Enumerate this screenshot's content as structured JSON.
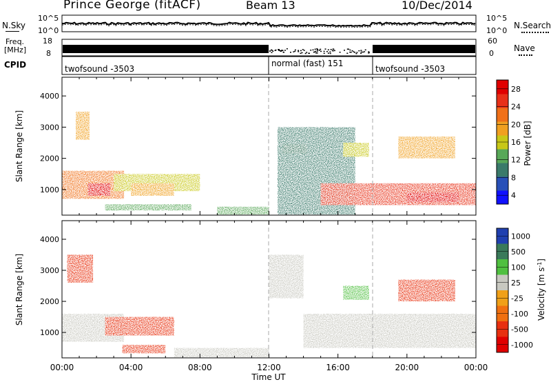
{
  "header": {
    "station": "Prince George (fitACF)",
    "beam": "Beam 13",
    "date": "10/Dec/2014"
  },
  "left_labels": {
    "nsky": "N.Sky",
    "freq_line1": "Freq.",
    "freq_line2": "[MHz]",
    "cpid": "CPID"
  },
  "right_labels": {
    "nsearch": "N.Search",
    "nave": "Nave"
  },
  "noise_axis": {
    "top": "10^5",
    "bottom": "10^0"
  },
  "freq_axis": {
    "top": "18",
    "bottom": "8"
  },
  "nave_axis": {
    "top": "60",
    "bottom": "0"
  },
  "cpid_segments": [
    {
      "label": "twofsound -3503",
      "start_hour": 0
    },
    {
      "label": "normal (fast) 151",
      "start_hour": 12
    },
    {
      "label": "twofsound -3503",
      "start_hour": 18
    }
  ],
  "time_axis": {
    "label": "Time UT",
    "ticks": [
      "00:00",
      "04:00",
      "08:00",
      "12:00",
      "16:00",
      "20:00",
      "00:00"
    ]
  },
  "range_axis": {
    "label": "Slant Range [km]",
    "ticks": [
      "1000",
      "2000",
      "3000",
      "4000"
    ]
  },
  "power_scale": {
    "label": "Power [dB]",
    "ticks": [
      "4",
      "8",
      "12",
      "16",
      "20",
      "24",
      "28"
    ],
    "colors": [
      "#1010ff",
      "#2850b8",
      "#3a7a6a",
      "#58a858",
      "#c8c818",
      "#f0a020",
      "#f07018",
      "#e83018",
      "#e00000"
    ]
  },
  "velocity_scale": {
    "label": "Velocity [m s",
    "label_sup": "-1",
    "label_end": "]",
    "ticks": [
      "1000",
      "500",
      "100",
      "25",
      "-25",
      "-100",
      "-500",
      "-1000"
    ],
    "colors": [
      "#2040b0",
      "#3a7a5a",
      "#50c040",
      "#c8c8c0",
      "#f0a018",
      "#f07010",
      "#e83010",
      "#e00000"
    ]
  },
  "chart_data": [
    {
      "type": "heatmap",
      "title": "",
      "xlabel": "Time UT",
      "ylabel": "Slant Range [km]",
      "colorbar_label": "Power [dB]",
      "xlim": [
        0,
        24
      ],
      "ylim": [
        180,
        4600
      ],
      "clim": [
        2,
        30
      ],
      "echo_regions": [
        {
          "t": [
            0,
            3.6
          ],
          "range": [
            700,
            1600
          ],
          "value": 22
        },
        {
          "t": [
            1.5,
            2.8
          ],
          "range": [
            800,
            1200
          ],
          "value": 28
        },
        {
          "t": [
            0.8,
            1.6
          ],
          "range": [
            2600,
            3500
          ],
          "value": 18
        },
        {
          "t": [
            3.0,
            8.0
          ],
          "range": [
            950,
            1500
          ],
          "value": 16
        },
        {
          "t": [
            4.0,
            6.5
          ],
          "range": [
            800,
            1200
          ],
          "value": 20
        },
        {
          "t": [
            2.5,
            7.5
          ],
          "range": [
            330,
            530
          ],
          "value": 14
        },
        {
          "t": [
            9.0,
            12.0
          ],
          "range": [
            200,
            450
          ],
          "value": 12
        },
        {
          "t": [
            12.8,
            14.2
          ],
          "range": [
            2150,
            2450
          ],
          "value": 18
        },
        {
          "t": [
            12.5,
            17.0
          ],
          "range": [
            200,
            3000
          ],
          "value": 10
        },
        {
          "t": [
            15.0,
            24.0
          ],
          "range": [
            500,
            1200
          ],
          "value": 24
        },
        {
          "t": [
            20.0,
            23.0
          ],
          "range": [
            600,
            900
          ],
          "value": 28
        },
        {
          "t": [
            16.3,
            17.8
          ],
          "range": [
            2050,
            2500
          ],
          "value": 16
        },
        {
          "t": [
            19.5,
            22.8
          ],
          "range": [
            2000,
            2700
          ],
          "value": 18
        }
      ]
    },
    {
      "type": "heatmap",
      "title": "",
      "xlabel": "Time UT",
      "ylabel": "Slant Range [km]",
      "colorbar_label": "Velocity [m s-1]",
      "xlim": [
        0,
        24
      ],
      "ylim": [
        180,
        4600
      ],
      "clim": [
        -1000,
        1000
      ],
      "echo_regions": [
        {
          "t": [
            0,
            3.6
          ],
          "range": [
            700,
            1600
          ],
          "value": 0
        },
        {
          "t": [
            0.3,
            1.8
          ],
          "range": [
            2600,
            3500
          ],
          "value": -300
        },
        {
          "t": [
            2.5,
            6.5
          ],
          "range": [
            900,
            1500
          ],
          "value": -300
        },
        {
          "t": [
            3.5,
            6.0
          ],
          "range": [
            330,
            600
          ],
          "value": -200
        },
        {
          "t": [
            6.5,
            12.0
          ],
          "range": [
            200,
            500
          ],
          "value": 80
        },
        {
          "t": [
            12.0,
            14.0
          ],
          "range": [
            2100,
            3500
          ],
          "value": 0
        },
        {
          "t": [
            14.0,
            24.0
          ],
          "range": [
            500,
            1600
          ],
          "value": 0
        },
        {
          "t": [
            16.3,
            17.8
          ],
          "range": [
            2050,
            2500
          ],
          "value": 100
        },
        {
          "t": [
            19.5,
            22.8
          ],
          "range": [
            2000,
            2700
          ],
          "value": -300
        }
      ]
    }
  ]
}
